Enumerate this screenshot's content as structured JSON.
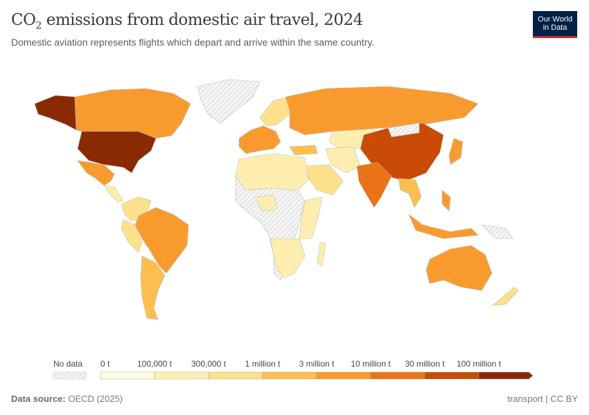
{
  "header": {
    "title_main": "CO",
    "title_sub": "2",
    "title_rest": " emissions from domestic air travel, 2024",
    "subtitle": "Domestic aviation represents flights which depart and arrive within the same country.",
    "logo_line1": "Our World",
    "logo_line2": "in Data"
  },
  "legend": {
    "no_data_label": "No data",
    "no_data_color": "#e6e6e6",
    "bins": [
      "0 t",
      "100,000 t",
      "300,000 t",
      "1 million t",
      "3 million t",
      "10 million t",
      "30 million t",
      "100 million t"
    ],
    "colors": [
      "#fffbe0",
      "#fdeeb0",
      "#fde08a",
      "#fcbf4f",
      "#f99a2f",
      "#ea7318",
      "#c94b05",
      "#8a2a03"
    ]
  },
  "footer": {
    "source_label": "Data source:",
    "source_value": "OECD (2025)",
    "license": "transport | CC BY"
  }
}
